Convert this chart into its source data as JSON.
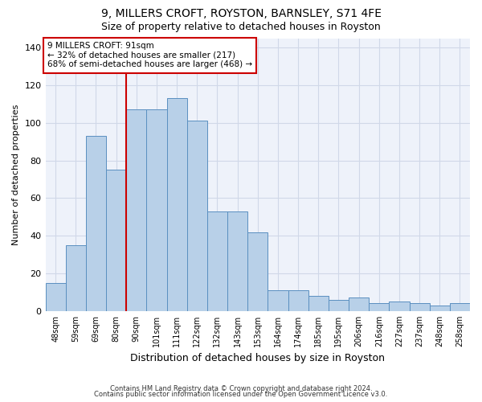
{
  "title1": "9, MILLERS CROFT, ROYSTON, BARNSLEY, S71 4FE",
  "title2": "Size of property relative to detached houses in Royston",
  "xlabel": "Distribution of detached houses by size in Royston",
  "ylabel": "Number of detached properties",
  "categories": [
    "48sqm",
    "59sqm",
    "69sqm",
    "80sqm",
    "90sqm",
    "101sqm",
    "111sqm",
    "122sqm",
    "132sqm",
    "143sqm",
    "153sqm",
    "164sqm",
    "174sqm",
    "185sqm",
    "195sqm",
    "206sqm",
    "216sqm",
    "227sqm",
    "237sqm",
    "248sqm",
    "258sqm"
  ],
  "values": [
    15,
    35,
    93,
    75,
    107,
    107,
    113,
    101,
    53,
    53,
    42,
    11,
    11,
    8,
    6,
    7,
    4,
    5,
    4,
    3,
    4
  ],
  "bar_color": "#b8d0e8",
  "bar_edge_color": "#5a8fc0",
  "vline_color": "#cc0000",
  "vline_label_line1": "9 MILLERS CROFT: 91sqm",
  "vline_label_line2": "← 32% of detached houses are smaller (217)",
  "vline_label_line3": "68% of semi-detached houses are larger (468) →",
  "annotation_box_color": "#cc0000",
  "ylim": [
    0,
    145
  ],
  "yticks": [
    0,
    20,
    40,
    60,
    80,
    100,
    120,
    140
  ],
  "grid_color": "#d0d8e8",
  "bg_color": "#eef2fa",
  "title1_fontsize": 10,
  "title2_fontsize": 9,
  "xlabel_fontsize": 9,
  "ylabel_fontsize": 8,
  "footer1": "Contains HM Land Registry data © Crown copyright and database right 2024.",
  "footer2": "Contains public sector information licensed under the Open Government Licence v3.0."
}
